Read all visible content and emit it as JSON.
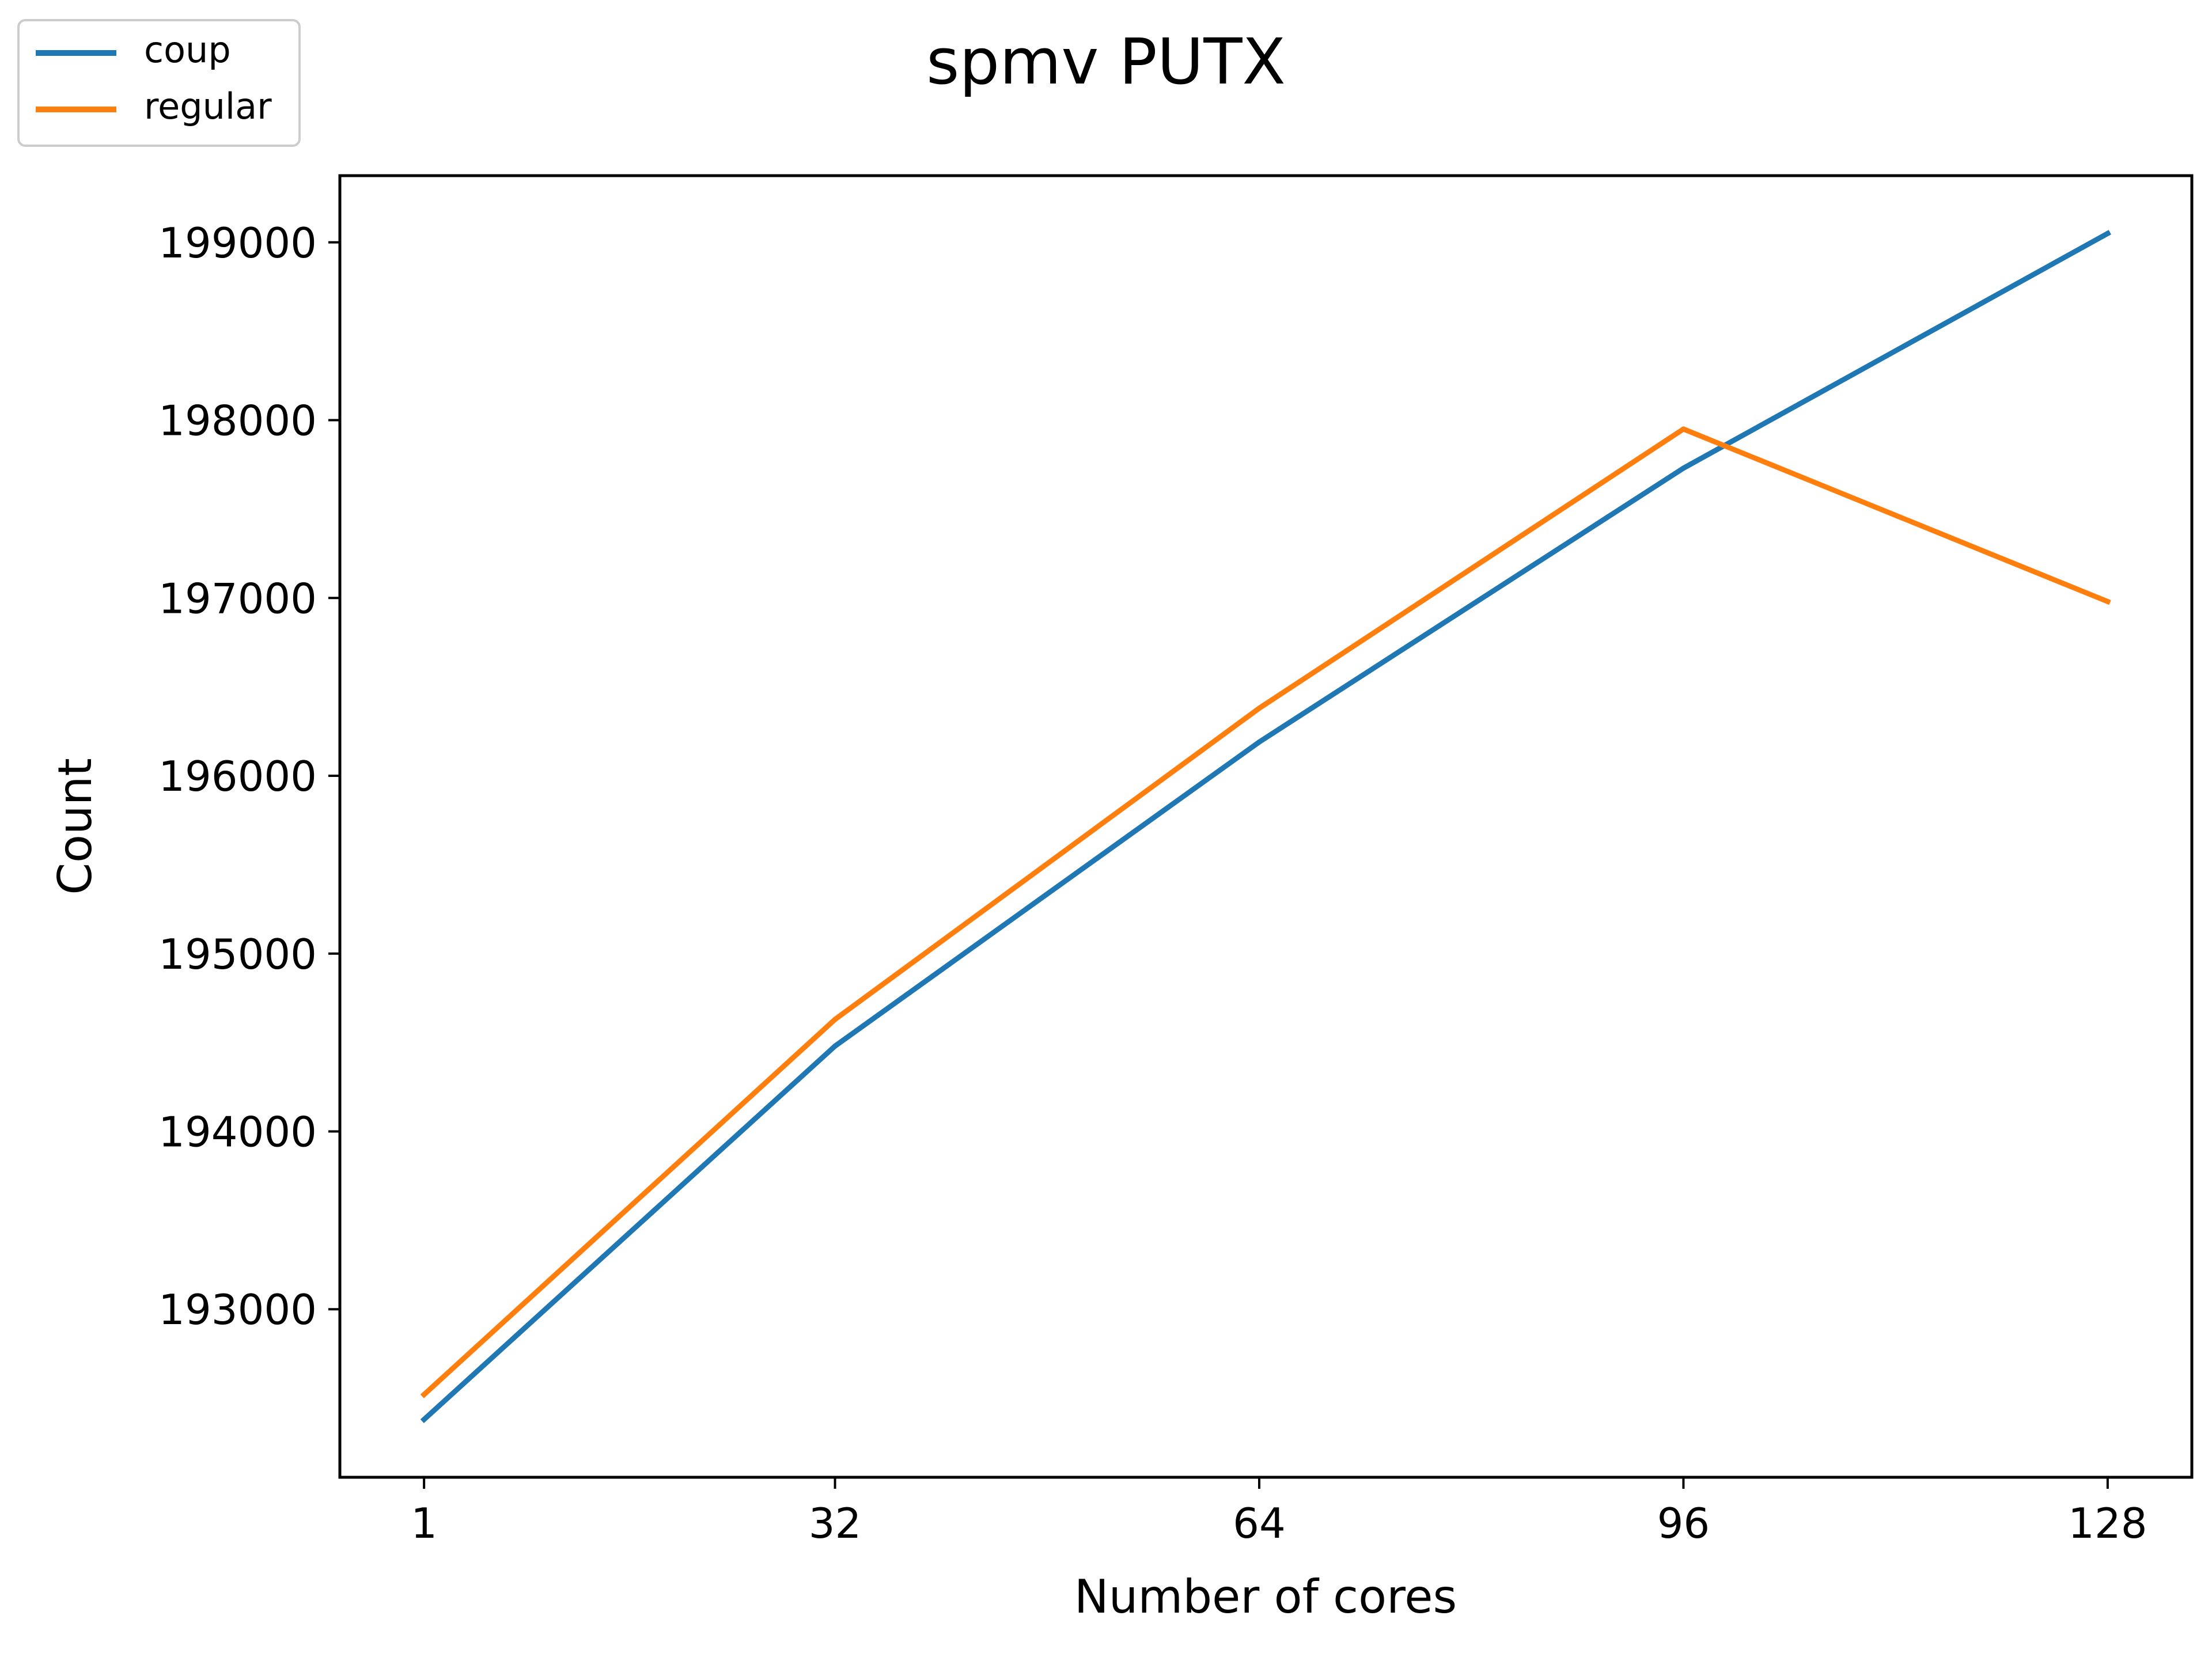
{
  "chart_data": {
    "type": "line",
    "title": "spmv PUTX",
    "xlabel": "Number of cores",
    "ylabel": "Count",
    "x": [
      1,
      32,
      64,
      96,
      128
    ],
    "xticks": [
      1,
      32,
      64,
      96,
      128
    ],
    "yticks": [
      193000,
      194000,
      195000,
      196000,
      197000,
      198000,
      199000
    ],
    "xlim": [
      -5.35,
      134.35
    ],
    "ylim": [
      192055,
      199375
    ],
    "grid": false,
    "legend_position": "top-left",
    "series": [
      {
        "name": "coup",
        "color": "#1f77b4",
        "values": [
          192380,
          194480,
          196190,
          197730,
          199050
        ]
      },
      {
        "name": "regular",
        "color": "#ff7f0e",
        "values": [
          192520,
          194630,
          196380,
          197950,
          196980
        ]
      }
    ]
  }
}
